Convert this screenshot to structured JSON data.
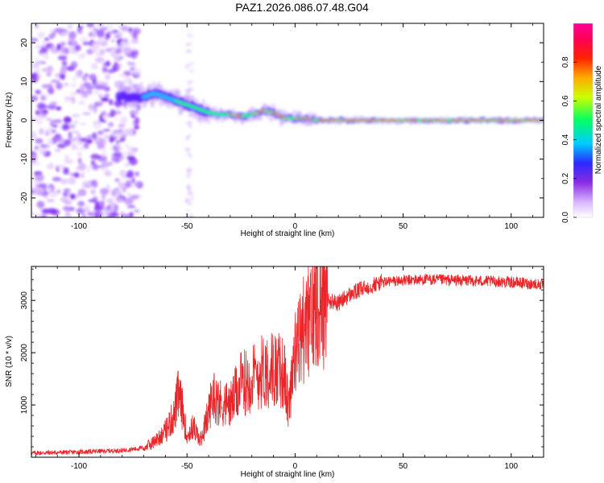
{
  "title": "PAZ1.2026.086.07.48.G04",
  "colors": {
    "snr_line": "#e8262a",
    "spectral_bg": "#ffffff",
    "colormap": [
      "#f2e6ff",
      "#d9b3ff",
      "#a64dff",
      "#7a1fff",
      "#3333ff",
      "#00ccff",
      "#00ff66",
      "#ffff00",
      "#ff8800",
      "#ff0000",
      "#ff0066",
      "#ff0099"
    ]
  },
  "chart_data": [
    {
      "type": "heatmap",
      "xlabel": "Height of straight line (km)",
      "ylabel": "Frequency (Hz)",
      "xlim": [
        -122,
        115
      ],
      "ylim": [
        -25,
        25
      ],
      "xticks": [
        -100,
        -50,
        0,
        50,
        100
      ],
      "yticks": [
        -20,
        -10,
        0,
        10,
        20
      ],
      "ridge": {
        "x": [
          -80,
          -70,
          -65,
          -60,
          -55,
          -50,
          -45,
          -40,
          -35,
          -30,
          -25,
          -20,
          -15,
          -10,
          -5,
          0,
          5,
          10,
          30,
          60,
          115
        ],
        "y": [
          6,
          6,
          7,
          6,
          5,
          4,
          3,
          2,
          1.5,
          1.5,
          1,
          1.5,
          2.5,
          2,
          0.5,
          0.5,
          0.5,
          0,
          0,
          0,
          0
        ]
      },
      "colorbar": {
        "label": "Normalized spectral amplitude",
        "range": [
          0,
          1
        ],
        "ticks": [
          "0.0",
          "0.2",
          "0.4",
          "0.6",
          "0.8"
        ]
      }
    },
    {
      "type": "line",
      "xlabel": "Height of straight line (km)",
      "ylabel": "SNR (10 * v/v)",
      "xlim": [
        -122,
        115
      ],
      "ylim": [
        0,
        3650
      ],
      "xticks": [
        -100,
        -50,
        0,
        50,
        100
      ],
      "yticks": [
        1000,
        2000,
        3000
      ],
      "series": [
        {
          "x": [
            -122,
            -100,
            -80,
            -70,
            -65,
            -60,
            -56,
            -54,
            -52,
            -50,
            -47,
            -44,
            -41,
            -38,
            -35,
            -30,
            -25,
            -20,
            -15,
            -10,
            -5,
            -3,
            -1,
            0,
            3,
            8,
            10,
            15,
            20,
            25,
            30,
            40,
            50,
            60,
            80,
            100,
            115
          ],
          "y": [
            80,
            100,
            130,
            180,
            300,
            500,
            800,
            1200,
            900,
            400,
            600,
            300,
            700,
            1200,
            1050,
            1000,
            1400,
            1500,
            1650,
            1700,
            1600,
            900,
            1800,
            1900,
            2400,
            2700,
            3100,
            3000,
            2950,
            3100,
            3200,
            3350,
            3380,
            3400,
            3380,
            3350,
            3300
          ]
        }
      ]
    }
  ]
}
